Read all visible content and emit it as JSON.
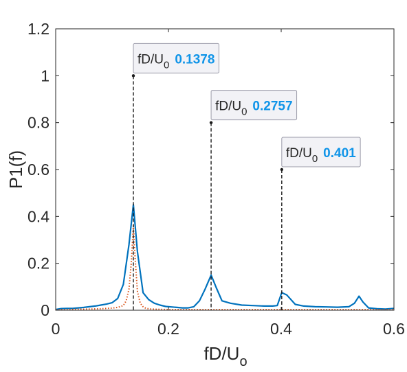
{
  "chart_data": {
    "type": "line",
    "xlabel_main": "fD/U",
    "xlabel_sub": "o",
    "ylabel": "P1(f)",
    "xlim": [
      0,
      0.6
    ],
    "ylim": [
      0,
      1.2
    ],
    "x_ticks": [
      {
        "value": 0,
        "label": "0"
      },
      {
        "value": 0.2,
        "label": "0.2"
      },
      {
        "value": 0.4,
        "label": "0.4"
      },
      {
        "value": 0.6,
        "label": "0.6"
      }
    ],
    "y_ticks": [
      {
        "value": 0,
        "label": "0"
      },
      {
        "value": 0.2,
        "label": "0.2"
      },
      {
        "value": 0.4,
        "label": "0.4"
      },
      {
        "value": 0.6,
        "label": "0.6"
      },
      {
        "value": 0.8,
        "label": "0.8"
      },
      {
        "value": 1,
        "label": "1"
      },
      {
        "value": 1.2,
        "label": "1.2"
      }
    ],
    "grid": false,
    "series": [
      {
        "color": "#0072bd",
        "style": "solid",
        "x": [
          0,
          0.01,
          0.02,
          0.03,
          0.04,
          0.05,
          0.06,
          0.07,
          0.08,
          0.09,
          0.1,
          0.11,
          0.12,
          0.13,
          0.1378,
          0.145,
          0.155,
          0.165,
          0.175,
          0.185,
          0.195,
          0.205,
          0.215,
          0.225,
          0.235,
          0.245,
          0.255,
          0.265,
          0.2757,
          0.285,
          0.295,
          0.31,
          0.33,
          0.35,
          0.37,
          0.385,
          0.393,
          0.401,
          0.41,
          0.425,
          0.44,
          0.46,
          0.48,
          0.5,
          0.52,
          0.53,
          0.538,
          0.545,
          0.555,
          0.57,
          0.585,
          0.6
        ],
        "y": [
          0.003,
          0.007,
          0.008,
          0.008,
          0.01,
          0.012,
          0.015,
          0.018,
          0.022,
          0.026,
          0.032,
          0.05,
          0.11,
          0.28,
          0.45,
          0.25,
          0.075,
          0.045,
          0.03,
          0.022,
          0.016,
          0.014,
          0.012,
          0.01,
          0.01,
          0.015,
          0.04,
          0.09,
          0.15,
          0.095,
          0.04,
          0.03,
          0.022,
          0.02,
          0.018,
          0.018,
          0.02,
          0.075,
          0.065,
          0.025,
          0.018,
          0.015,
          0.014,
          0.013,
          0.015,
          0.03,
          0.06,
          0.035,
          0.01,
          0.006,
          0.005,
          0.008
        ]
      },
      {
        "color": "#d95319",
        "style": "dotted",
        "x": [
          0,
          0.02,
          0.04,
          0.06,
          0.08,
          0.1,
          0.11,
          0.12,
          0.125,
          0.13,
          0.134,
          0.1378,
          0.141,
          0.145,
          0.15,
          0.155,
          0.16,
          0.17,
          0.18,
          0.2,
          0.25,
          0.3,
          0.35,
          0.4,
          0.45,
          0.5,
          0.55,
          0.6
        ],
        "y": [
          0.002,
          0.003,
          0.004,
          0.005,
          0.006,
          0.009,
          0.012,
          0.02,
          0.04,
          0.09,
          0.2,
          0.36,
          0.22,
          0.08,
          0.03,
          0.015,
          0.008,
          0.005,
          0.004,
          0.003,
          0.003,
          0.003,
          0.003,
          0.003,
          0.003,
          0.003,
          0.003,
          0.003
        ]
      }
    ],
    "datatips": [
      {
        "x": 0.1378,
        "y": 1.0,
        "label_main": "fD/U",
        "label_sub": "0",
        "value": "0.1378"
      },
      {
        "x": 0.2757,
        "y": 0.8,
        "label_main": "fD/U",
        "label_sub": "0",
        "value": "0.2757"
      },
      {
        "x": 0.401,
        "y": 0.6,
        "label_main": "fD/U",
        "label_sub": "0",
        "value": "0.401"
      }
    ],
    "datatip_value_color": "#0f94e8"
  }
}
